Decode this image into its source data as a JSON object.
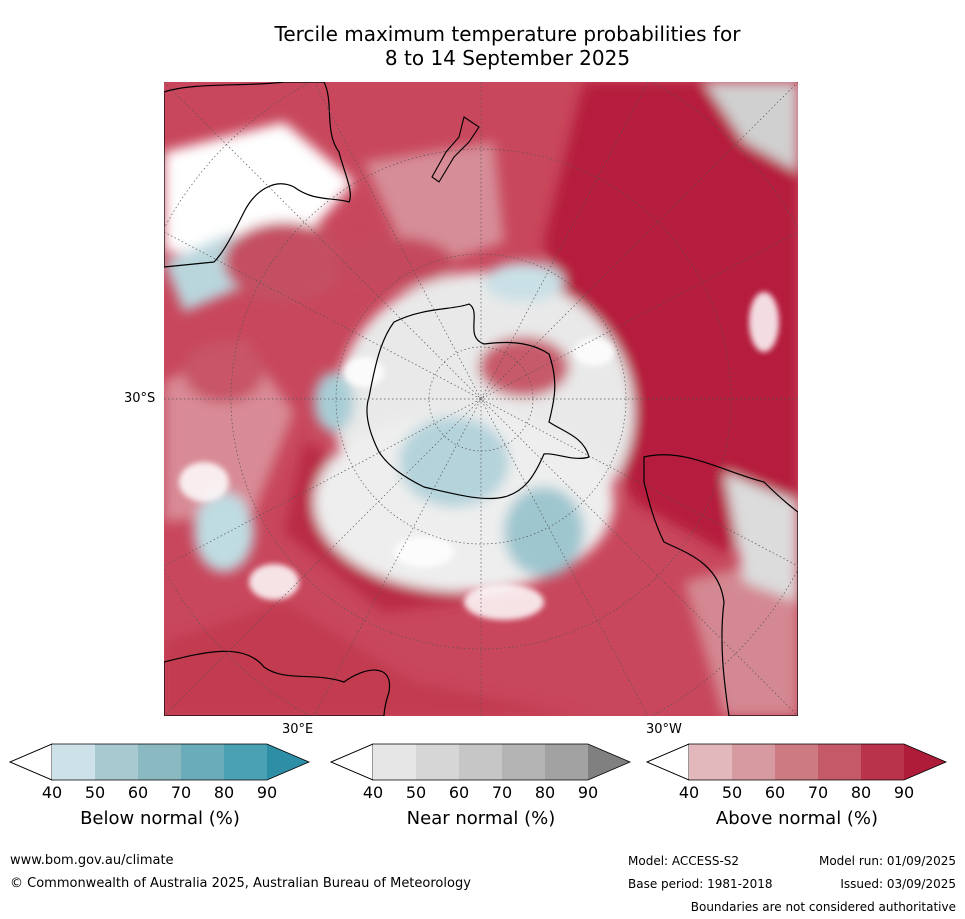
{
  "title_line1": "Tercile maximum temperature probabilities for",
  "title_line2": "8 to 14 September 2025",
  "map": {
    "lat_label": "30°S",
    "lon_label_east": "30°E",
    "lon_label_west": "30°W",
    "colors": {
      "land_outline": "#000000",
      "grid": "#555555",
      "white": "#ffffff"
    }
  },
  "colorbars": [
    {
      "name": "below",
      "title": "Below normal (%)",
      "ticks": [
        "40",
        "50",
        "60",
        "70",
        "80",
        "90"
      ],
      "colors": [
        "#cde2e8",
        "#a8c9d0",
        "#8bb9c2",
        "#6aacba",
        "#49a1b3",
        "#2e8ea6"
      ]
    },
    {
      "name": "near",
      "title": "Near normal (%)",
      "ticks": [
        "40",
        "50",
        "60",
        "70",
        "80",
        "90"
      ],
      "colors": [
        "#e6e6e6",
        "#d6d6d6",
        "#c6c6c6",
        "#b4b4b4",
        "#a2a2a2",
        "#808080"
      ]
    },
    {
      "name": "above",
      "title": "Above normal (%)",
      "ticks": [
        "40",
        "50",
        "60",
        "70",
        "80",
        "90"
      ],
      "colors": [
        "#e3b8bd",
        "#d89aa1",
        "#cd7a83",
        "#c45a67",
        "#b9344a",
        "#ae1c3a"
      ]
    }
  ],
  "footer": {
    "website": "www.bom.gov.au/climate",
    "copyright": "© Commonwealth of Australia 2025, Australian Bureau of Meteorology",
    "model": "Model: ACCESS-S2",
    "model_run": "Model run: 01/09/2025",
    "base_period": "Base period: 1981-2018",
    "issued": "Issued: 03/09/2025",
    "disclaimer": "Boundaries are not considered authoritative"
  }
}
